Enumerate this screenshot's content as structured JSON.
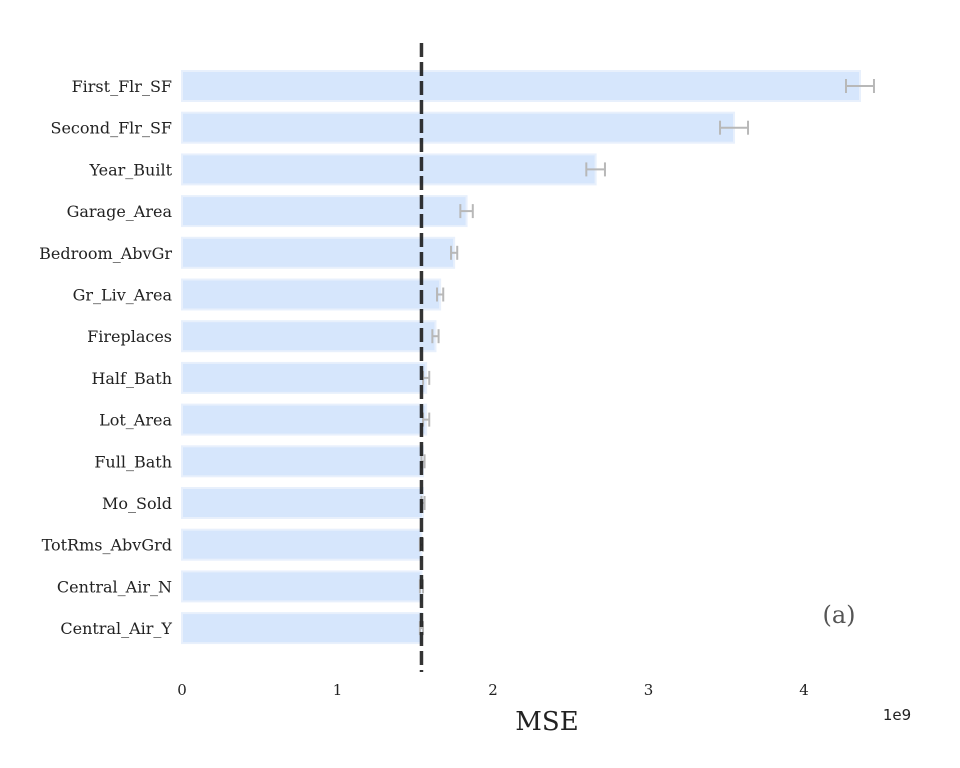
{
  "chart_data": {
    "type": "bar",
    "orientation": "horizontal",
    "categories": [
      "First_Flr_SF",
      "Second_Flr_SF",
      "Year_Built",
      "Garage_Area",
      "Bedroom_AbvGr",
      "Gr_Liv_Area",
      "Fireplaces",
      "Half_Bath",
      "Lot_Area",
      "Full_Bath",
      "Mo_Sold",
      "TotRms_AbvGrd",
      "Central_Air_N",
      "Central_Air_Y"
    ],
    "values": [
      4.36,
      3.55,
      2.66,
      1.83,
      1.75,
      1.66,
      1.63,
      1.57,
      1.57,
      1.55,
      1.55,
      1.54,
      1.54,
      1.54
    ],
    "errors": [
      0.09,
      0.09,
      0.06,
      0.04,
      0.02,
      0.02,
      0.02,
      0.02,
      0.02,
      0.01,
      0.01,
      0.01,
      0.01,
      0.01
    ],
    "reference_value": 1.54,
    "xlabel": "MSE",
    "x_offset_label": "1e9",
    "x_ticks": [
      0,
      1,
      2,
      3,
      4
    ],
    "xlim": [
      0,
      4.6
    ],
    "annotation": "(a)",
    "grid": false,
    "colors": {
      "bar": "#d6e6fc",
      "bar_edge": "#e8f0fc",
      "error": "#b8b8b8",
      "reference": "#111111"
    }
  }
}
